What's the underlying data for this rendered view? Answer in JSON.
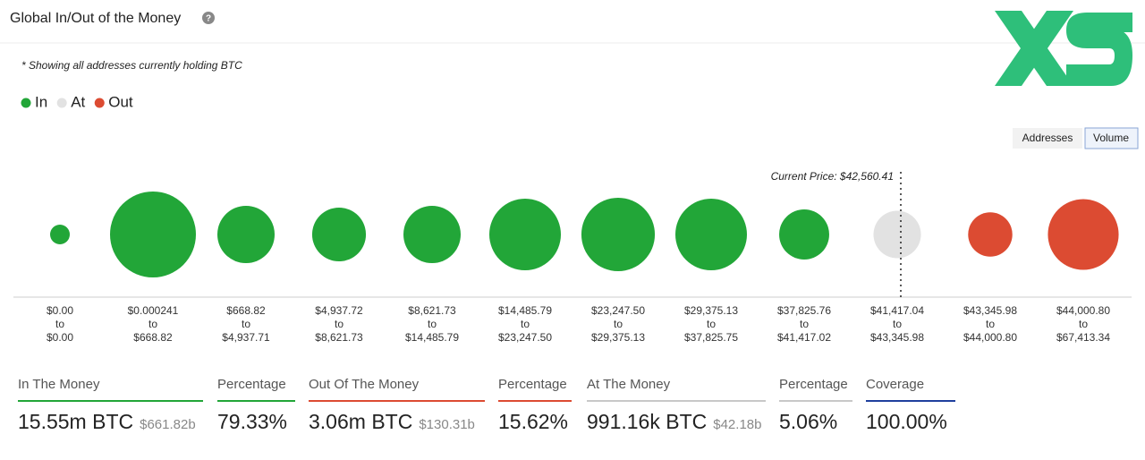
{
  "header": {
    "title": "Global In/Out of the Money"
  },
  "note": "* Showing all addresses currently holding BTC",
  "toggle": [
    "Addresses",
    "Volume"
  ],
  "chart_data": {
    "type": "bubble",
    "ranges_from": [
      "$0.00",
      "$0.000241",
      "$668.82",
      "$4,937.72",
      "$8,621.73",
      "$14,485.79",
      "$23,247.50",
      "$29,375.13",
      "$37,825.76",
      "$41,417.04",
      "$43,345.98",
      "$44,000.80"
    ],
    "range_connector": "to",
    "ranges_to": [
      "$0.00",
      "$668.82",
      "$4,937.71",
      "$8,621.73",
      "$14,485.79",
      "$23,247.50",
      "$29,375.13",
      "$37,825.75",
      "$41,417.02",
      "$43,345.98",
      "$44,000.80",
      "$67,413.34"
    ],
    "series": [
      {
        "name": "In",
        "color": "#22a638",
        "values": [
          0.17,
          3.24,
          1.44,
          1.27,
          1.44,
          2.25,
          2.37,
          2.25,
          1.1,
          null,
          null,
          null
        ]
      },
      {
        "name": "At",
        "color": "#e2e2e2",
        "values": [
          null,
          null,
          null,
          null,
          null,
          null,
          null,
          null,
          null,
          0.99,
          null,
          null
        ]
      },
      {
        "name": "Out",
        "color": "#dc4b32",
        "values": [
          null,
          null,
          null,
          null,
          null,
          null,
          null,
          null,
          null,
          null,
          0.86,
          2.2
        ]
      }
    ],
    "current_price_label": "Current Price: $42,560.41"
  },
  "summary": [
    {
      "label": "In The Money",
      "value": "15.55m BTC",
      "sub": "$661.82b",
      "color": "#22a638"
    },
    {
      "label": "Percentage",
      "value": "79.33%",
      "color": "#22a638"
    },
    {
      "label": "Out Of The Money",
      "value": "3.06m BTC",
      "sub": "$130.31b",
      "color": "#dc4b32"
    },
    {
      "label": "Percentage",
      "value": "15.62%",
      "color": "#dc4b32"
    },
    {
      "label": "At The Money",
      "value": "991.16k BTC",
      "sub": "$42.18b",
      "color": "#c8c8c8"
    },
    {
      "label": "Percentage",
      "value": "5.06%",
      "color": "#c8c8c8"
    },
    {
      "label": "Coverage",
      "value": "100.00%",
      "color": "#1f3f9e"
    }
  ]
}
